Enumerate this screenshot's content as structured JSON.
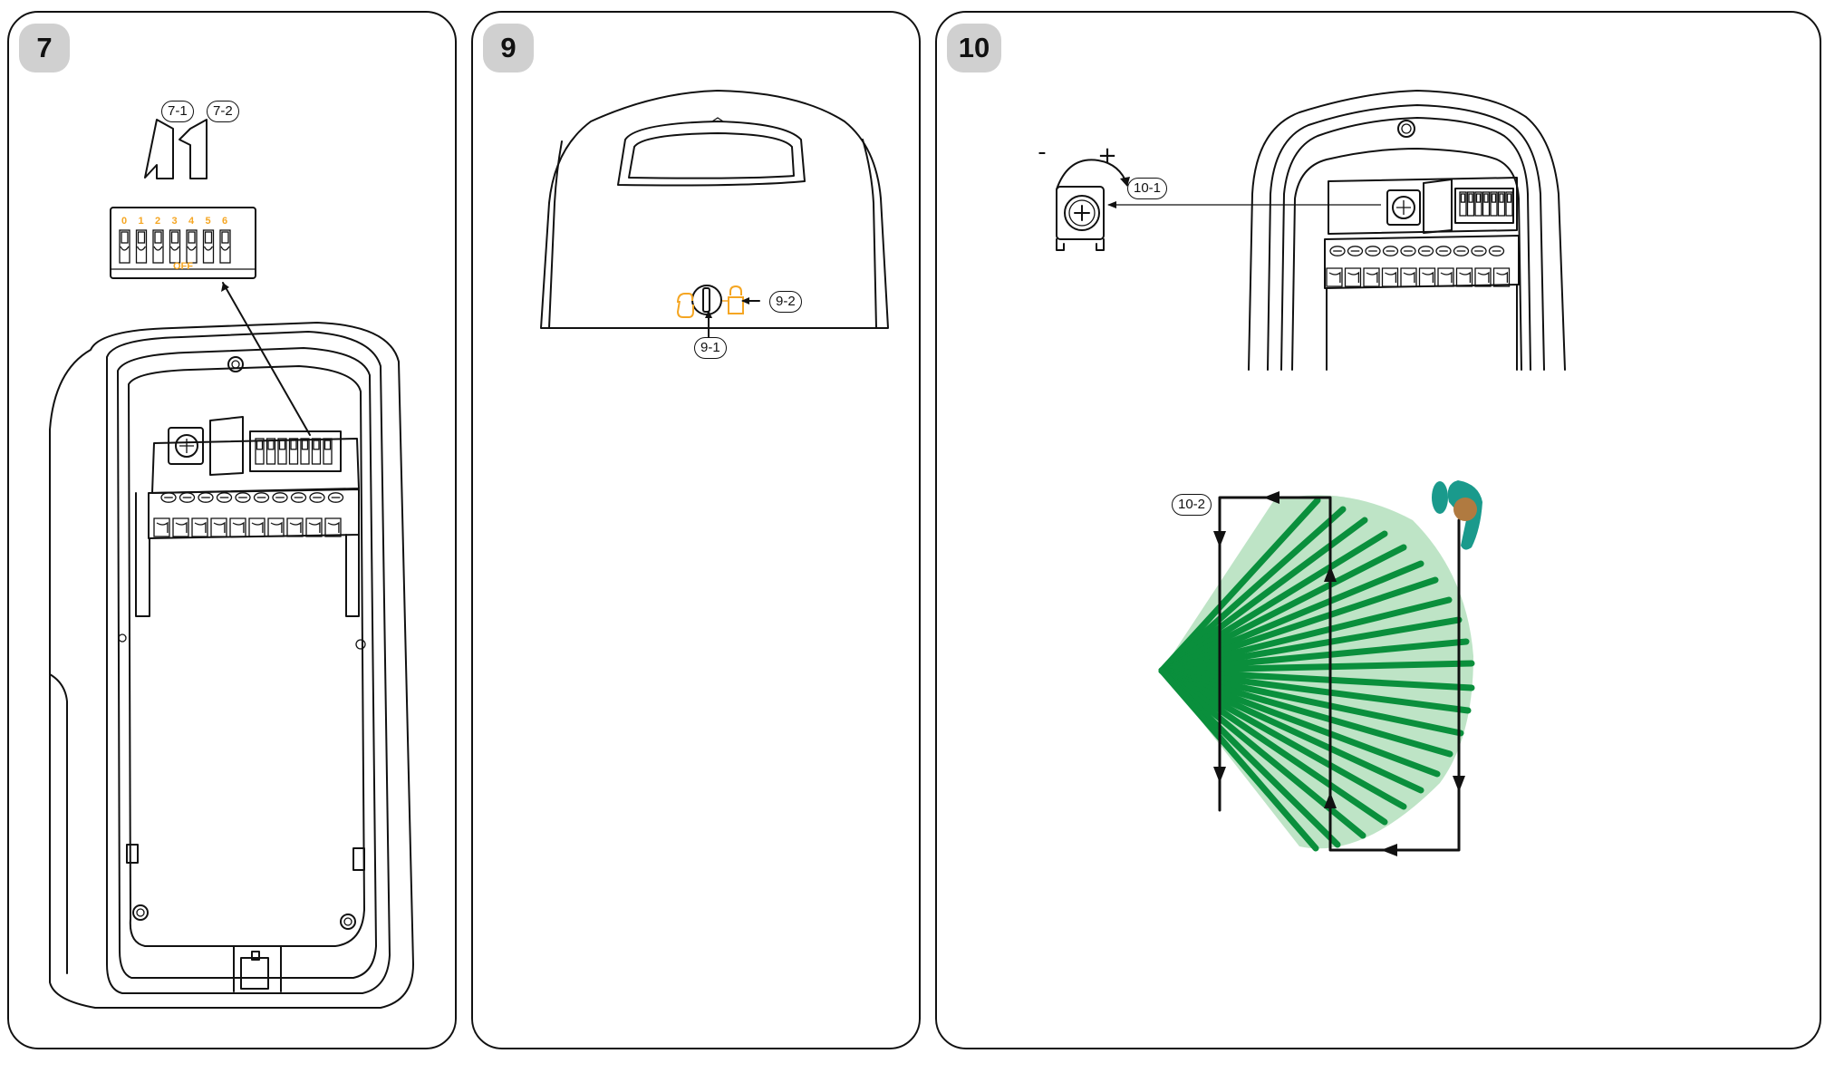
{
  "panels": [
    {
      "number": "7",
      "labels": {
        "l1": "7-1",
        "l2": "7-2"
      },
      "dip": {
        "numbers": [
          "0",
          "1",
          "2",
          "3",
          "4",
          "5",
          "6"
        ],
        "off_label": "OFF"
      }
    },
    {
      "number": "9",
      "labels": {
        "l1": "9-1",
        "l2": "9-2"
      }
    },
    {
      "number": "10",
      "labels": {
        "l1": "10-1",
        "l2": "10-2"
      },
      "adjust": {
        "minus": "-",
        "plus": "+"
      },
      "colors": {
        "zone_fill": "#a8dbb3",
        "beam": "#0a8f3c",
        "person": "#1a9a8c",
        "head": "#b07a40"
      }
    }
  ]
}
